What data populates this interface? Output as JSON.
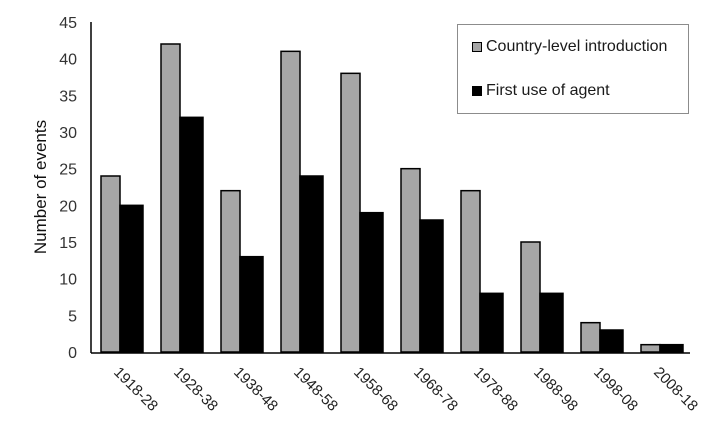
{
  "chart_data": {
    "type": "bar",
    "title": "",
    "xlabel": "",
    "ylabel": "Number of events",
    "ylim": [
      0,
      45
    ],
    "yticks": [
      0,
      5,
      10,
      15,
      20,
      25,
      30,
      35,
      40,
      45
    ],
    "grid": false,
    "legend_position": "upper right",
    "categories": [
      "1918-28",
      "1928-38",
      "1938-48",
      "1948-58",
      "1958-68",
      "1968-78",
      "1978-88",
      "1988-98",
      "1998-08",
      "2008-18"
    ],
    "series": [
      {
        "name": "Country-level introduction",
        "color": "#a6a6a6",
        "values": [
          24,
          42,
          22,
          41,
          38,
          25,
          22,
          15,
          4,
          1
        ]
      },
      {
        "name": "First use of agent",
        "color": "#000000",
        "values": [
          20,
          32,
          13,
          24,
          19,
          18,
          8,
          8,
          3,
          1
        ]
      }
    ]
  },
  "legend": {
    "items": [
      {
        "label": "Country-level introduction",
        "color": "#a6a6a6"
      },
      {
        "label": "First use of agent",
        "color": "#000000"
      }
    ]
  }
}
